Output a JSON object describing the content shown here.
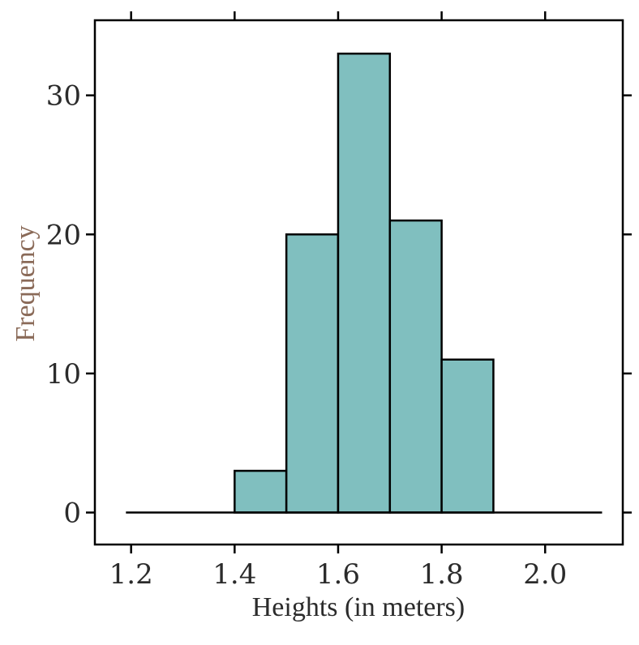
{
  "chart_data": {
    "type": "bar",
    "subtype": "histogram",
    "xlabel": "Heights (in meters)",
    "ylabel": "Frequency",
    "bins": [
      {
        "start": 1.4,
        "end": 1.5,
        "value": 3
      },
      {
        "start": 1.5,
        "end": 1.6,
        "value": 20
      },
      {
        "start": 1.6,
        "end": 1.7,
        "value": 33
      },
      {
        "start": 1.7,
        "end": 1.8,
        "value": 21
      },
      {
        "start": 1.8,
        "end": 1.9,
        "value": 11
      }
    ],
    "xlim": [
      1.13,
      2.15
    ],
    "ylim": [
      -2.3,
      35.4
    ],
    "xticks": [
      1.2,
      1.4,
      1.6,
      1.8,
      2.0
    ],
    "xtick_labels": [
      "1.2",
      "1.4",
      "1.6",
      "1.8",
      "2.0"
    ],
    "yticks": [
      0,
      10,
      20,
      30
    ],
    "ytick_labels": [
      "0",
      "10",
      "20",
      "30"
    ],
    "baseline_range": [
      1.19,
      2.11
    ],
    "grid": false,
    "bar_color": "#80bfbf",
    "edge_color": "#000000"
  }
}
